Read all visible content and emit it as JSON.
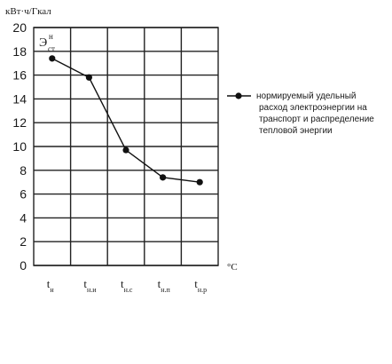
{
  "chart_data": {
    "type": "line",
    "ylabel": "кВт·ч/Гкал",
    "xunit": "°C",
    "annotation": {
      "main": "Э",
      "sup": "н",
      "sub": "ст"
    },
    "ylim": [
      0,
      20
    ],
    "yticks": [
      "0",
      "2",
      "4",
      "6",
      "8",
      "10",
      "12",
      "14",
      "16",
      "18",
      "20"
    ],
    "categories": [
      {
        "main": "t",
        "sub": "н"
      },
      {
        "main": "t",
        "sub": "н.и"
      },
      {
        "main": "t",
        "sub": "н.с"
      },
      {
        "main": "t",
        "sub": "н.п"
      },
      {
        "main": "t",
        "sub": "н.р"
      }
    ],
    "series": [
      {
        "name": "нормируемый удельный расход электроэнергии на транспорт и распределение тепловой энергии",
        "values": [
          17.4,
          15.8,
          9.7,
          7.4,
          7.0
        ]
      }
    ],
    "legend_lines": [
      "нормируемый  удельный",
      "расход электроэнергии на",
      "транспорт и распределение",
      "тепловой энергии"
    ],
    "grid": true,
    "legend_position": "right"
  }
}
